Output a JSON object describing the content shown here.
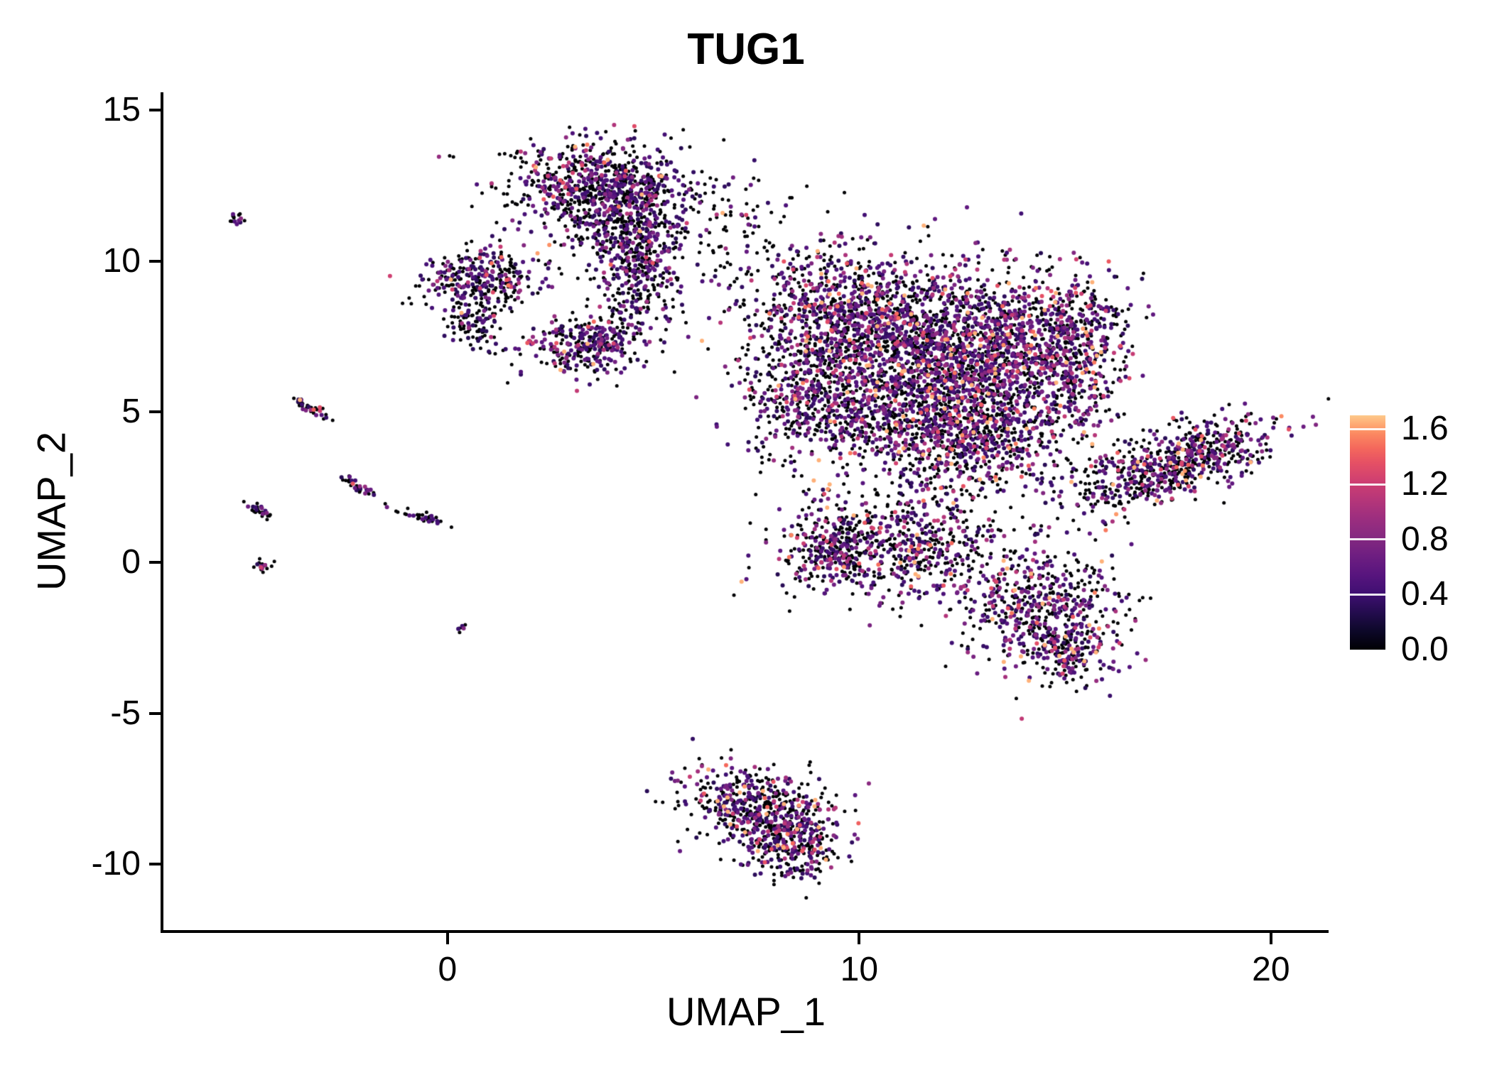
{
  "chart_data": {
    "type": "scatter",
    "title": "TUG1",
    "xlabel": "UMAP_1",
    "ylabel": "UMAP_2",
    "xlim": [
      -6.9,
      21.4
    ],
    "ylim": [
      -12.18,
      15.59
    ],
    "xticks": [
      {
        "label": "0",
        "value": 0
      },
      {
        "label": "10",
        "value": 10
      },
      {
        "label": "20",
        "value": 20
      }
    ],
    "yticks": [
      {
        "label": "15",
        "value": 15
      },
      {
        "label": "10",
        "value": 10
      },
      {
        "label": "5",
        "value": 5
      },
      {
        "label": "0",
        "value": 0
      },
      {
        "label": "-5",
        "value": -5
      },
      {
        "label": "-10",
        "value": -10
      }
    ],
    "legend": {
      "limits": [
        0,
        1.7
      ],
      "ticks": [
        {
          "label": "1.6",
          "value": 1.6
        },
        {
          "label": "1.2",
          "value": 1.2
        },
        {
          "label": "0.8",
          "value": 0.8
        },
        {
          "label": "0.4",
          "value": 0.4
        },
        {
          "label": "0.0",
          "value": 0.0
        }
      ]
    },
    "colormap": {
      "name": "magma",
      "stops": [
        [
          0.0,
          "#000004"
        ],
        [
          0.08,
          "#0D0829"
        ],
        [
          0.16,
          "#240C4F"
        ],
        [
          0.24,
          "#3F0F72"
        ],
        [
          0.32,
          "#58157E"
        ],
        [
          0.4,
          "#6E1E81"
        ],
        [
          0.48,
          "#852980"
        ],
        [
          0.56,
          "#9C2E7F"
        ],
        [
          0.64,
          "#B63679"
        ],
        [
          0.72,
          "#CF3F71"
        ],
        [
          0.8,
          "#E65164"
        ],
        [
          0.86,
          "#F4685C"
        ],
        [
          0.92,
          "#FB8861"
        ],
        [
          0.96,
          "#FEA873"
        ],
        [
          1.0,
          "#FDC98A"
        ]
      ]
    },
    "clusters": [
      {
        "name": "top-main",
        "cx": 3.8,
        "cy": 12.4,
        "sx": 1.15,
        "sy": 0.75,
        "rot": -8,
        "n": 850,
        "zero_frac": 0.52,
        "expr_scale": 0.35
      },
      {
        "name": "top-main-south",
        "cx": 4.4,
        "cy": 10.9,
        "sx": 0.7,
        "sy": 0.5,
        "rot": 0,
        "n": 200,
        "zero_frac": 0.6,
        "expr_scale": 0.35
      },
      {
        "name": "top-neck",
        "cx": 4.6,
        "cy": 9.6,
        "sx": 0.55,
        "sy": 0.8,
        "rot": 0,
        "n": 260,
        "zero_frac": 0.55,
        "expr_scale": 0.35
      },
      {
        "name": "left-upper",
        "cx": 0.8,
        "cy": 9.4,
        "sx": 0.75,
        "sy": 0.5,
        "rot": 10,
        "n": 300,
        "zero_frac": 0.55,
        "expr_scale": 0.35
      },
      {
        "name": "left-upper-tail",
        "cx": 0.6,
        "cy": 8.0,
        "sx": 0.35,
        "sy": 0.5,
        "rot": 0,
        "n": 110,
        "zero_frac": 0.6,
        "expr_scale": 0.3
      },
      {
        "name": "mid-left",
        "cx": 3.4,
        "cy": 7.3,
        "sx": 0.8,
        "sy": 0.55,
        "rot": 15,
        "n": 340,
        "zero_frac": 0.5,
        "expr_scale": 0.35
      },
      {
        "name": "sparse-bridge",
        "cx": 6.6,
        "cy": 10.9,
        "sx": 1.3,
        "sy": 1.0,
        "rot": 0,
        "n": 110,
        "zero_frac": 0.82,
        "expr_scale": 0.3
      },
      {
        "name": "main-nw",
        "cx": 9.3,
        "cy": 8.3,
        "sx": 1.05,
        "sy": 1.15,
        "rot": 0,
        "n": 650,
        "zero_frac": 0.5,
        "expr_scale": 0.4
      },
      {
        "name": "main-core",
        "cx": 11.5,
        "cy": 7.4,
        "sx": 1.3,
        "sy": 1.35,
        "rot": 0,
        "n": 1150,
        "zero_frac": 0.45,
        "expr_scale": 0.45
      },
      {
        "name": "main-e",
        "cx": 13.4,
        "cy": 6.7,
        "sx": 1.0,
        "sy": 1.25,
        "rot": 0,
        "n": 750,
        "zero_frac": 0.48,
        "expr_scale": 0.4
      },
      {
        "name": "main-s",
        "cx": 10.6,
        "cy": 4.8,
        "sx": 1.35,
        "sy": 1.0,
        "rot": 0,
        "n": 680,
        "zero_frac": 0.5,
        "expr_scale": 0.4
      },
      {
        "name": "main-se",
        "cx": 12.8,
        "cy": 4.0,
        "sx": 1.0,
        "sy": 0.9,
        "rot": 0,
        "n": 480,
        "zero_frac": 0.5,
        "expr_scale": 0.4
      },
      {
        "name": "main-w",
        "cx": 8.6,
        "cy": 5.7,
        "sx": 0.8,
        "sy": 1.0,
        "rot": 0,
        "n": 320,
        "zero_frac": 0.55,
        "expr_scale": 0.35
      },
      {
        "name": "main-ne-arm",
        "cx": 14.9,
        "cy": 7.9,
        "sx": 0.7,
        "sy": 1.0,
        "rot": -20,
        "n": 330,
        "zero_frac": 0.5,
        "expr_scale": 0.4
      },
      {
        "name": "right-arm",
        "cx": 15.3,
        "cy": 6.0,
        "sx": 0.55,
        "sy": 1.2,
        "rot": -15,
        "n": 300,
        "zero_frac": 0.52,
        "expr_scale": 0.4
      },
      {
        "name": "far-right",
        "cx": 17.7,
        "cy": 3.3,
        "sx": 1.35,
        "sy": 0.55,
        "rot": 25,
        "n": 700,
        "zero_frac": 0.55,
        "expr_scale": 0.4
      },
      {
        "name": "lower-mid",
        "cx": 11.0,
        "cy": 0.6,
        "sx": 1.4,
        "sy": 1.0,
        "rot": 0,
        "n": 650,
        "zero_frac": 0.5,
        "expr_scale": 0.4
      },
      {
        "name": "lower-mid-west",
        "cx": 9.4,
        "cy": 0.6,
        "sx": 0.5,
        "sy": 0.65,
        "rot": 0,
        "n": 200,
        "zero_frac": 0.5,
        "expr_scale": 0.4
      },
      {
        "name": "lower-right",
        "cx": 14.5,
        "cy": -1.5,
        "sx": 0.95,
        "sy": 0.95,
        "rot": 20,
        "n": 520,
        "zero_frac": 0.45,
        "expr_scale": 0.45
      },
      {
        "name": "lower-right-tip",
        "cx": 15.0,
        "cy": -3.0,
        "sx": 0.5,
        "sy": 0.55,
        "rot": 0,
        "n": 150,
        "zero_frac": 0.5,
        "expr_scale": 0.45
      },
      {
        "name": "bottom-a",
        "cx": 7.4,
        "cy": -8.0,
        "sx": 0.85,
        "sy": 0.6,
        "rot": -15,
        "n": 430,
        "zero_frac": 0.5,
        "expr_scale": 0.4
      },
      {
        "name": "bottom-b",
        "cx": 8.3,
        "cy": -9.3,
        "sx": 0.6,
        "sy": 0.65,
        "rot": -20,
        "n": 330,
        "zero_frac": 0.52,
        "expr_scale": 0.4
      },
      {
        "name": "satellite-1",
        "cx": -5.1,
        "cy": 11.4,
        "sx": 0.08,
        "sy": 0.12,
        "rot": 0,
        "n": 14,
        "zero_frac": 0.6,
        "expr_scale": 0.4
      },
      {
        "name": "satellite-2",
        "cx": -3.35,
        "cy": 5.15,
        "sx": 0.28,
        "sy": 0.07,
        "rot": -38,
        "n": 40,
        "zero_frac": 0.55,
        "expr_scale": 0.4
      },
      {
        "name": "satellite-3",
        "cx": -2.2,
        "cy": 2.55,
        "sx": 0.24,
        "sy": 0.07,
        "rot": -38,
        "n": 34,
        "zero_frac": 0.6,
        "expr_scale": 0.4
      },
      {
        "name": "satellite-4",
        "cx": -4.6,
        "cy": 1.75,
        "sx": 0.2,
        "sy": 0.07,
        "rot": -38,
        "n": 28,
        "zero_frac": 0.55,
        "expr_scale": 0.4
      },
      {
        "name": "satellite-5",
        "cx": -0.62,
        "cy": 1.5,
        "sx": 0.26,
        "sy": 0.07,
        "rot": -20,
        "n": 34,
        "zero_frac": 0.6,
        "expr_scale": 0.35
      },
      {
        "name": "satellite-6",
        "cx": -4.45,
        "cy": -0.1,
        "sx": 0.13,
        "sy": 0.1,
        "rot": 0,
        "n": 20,
        "zero_frac": 0.6,
        "expr_scale": 0.4
      },
      {
        "name": "satellite-7",
        "cx": 0.35,
        "cy": -2.1,
        "sx": 0.07,
        "sy": 0.07,
        "rot": 0,
        "n": 8,
        "zero_frac": 0.7,
        "expr_scale": 0.3
      }
    ]
  }
}
